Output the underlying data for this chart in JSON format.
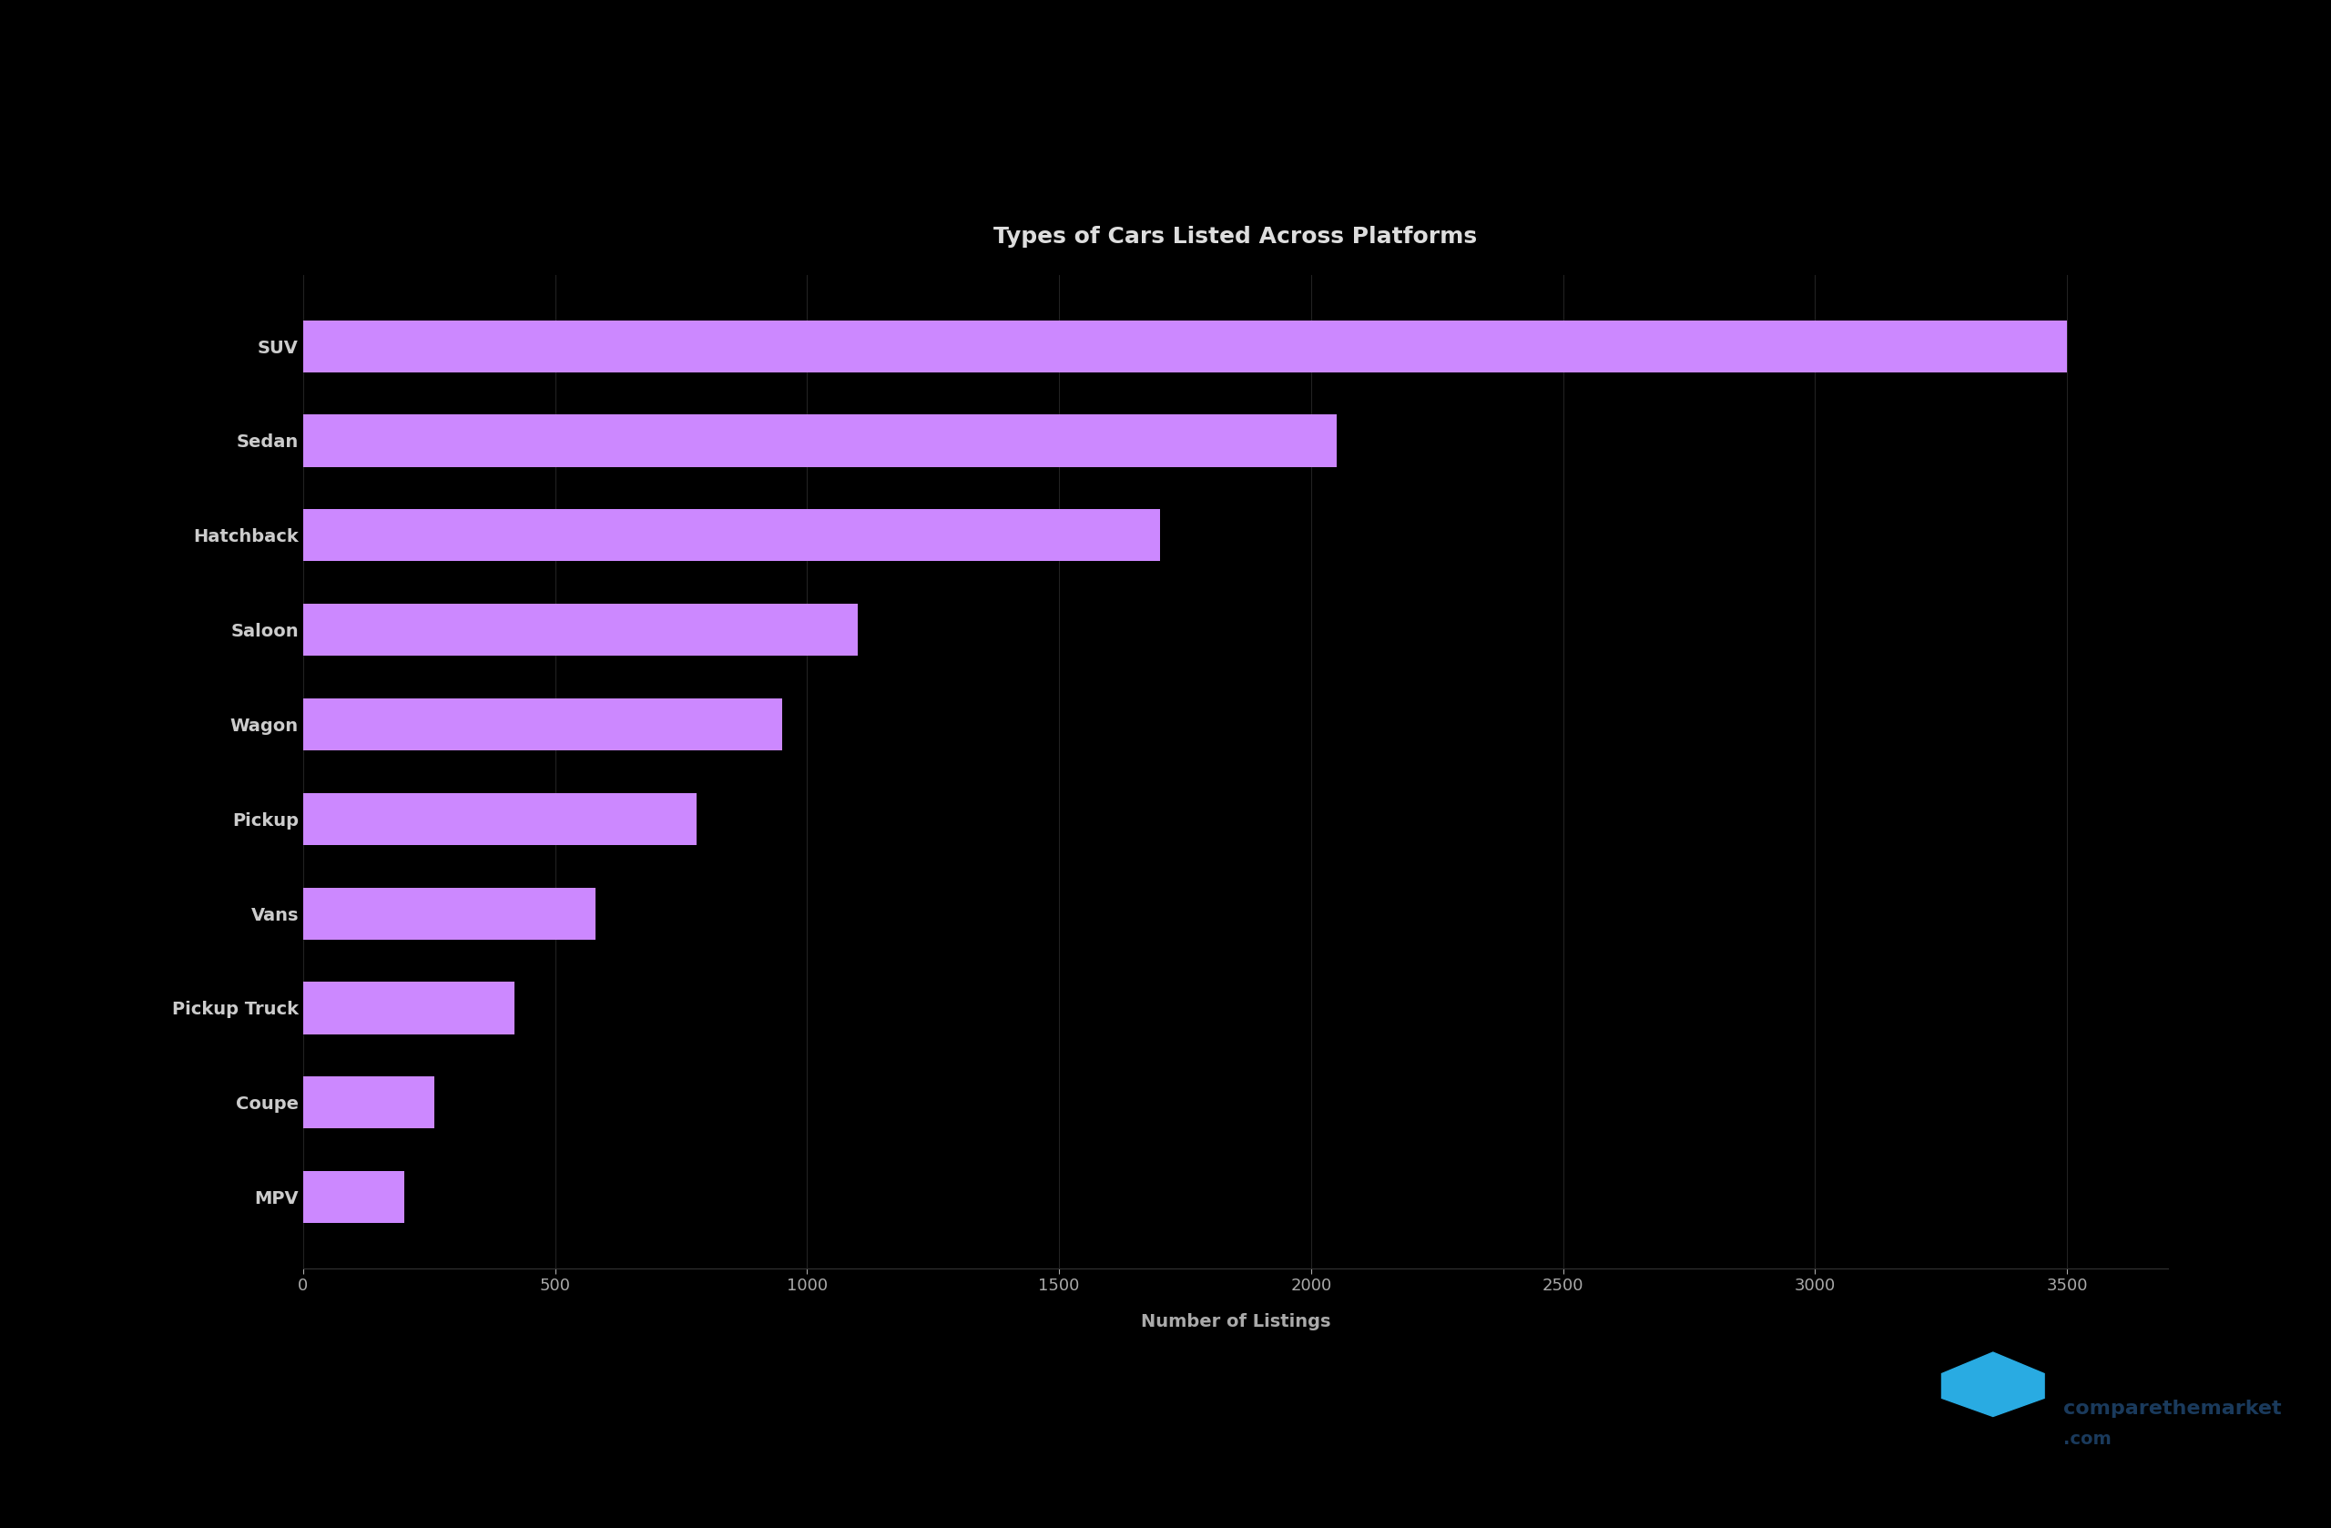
{
  "title": "Types of Cars Listed Across Platforms",
  "xlabel": "Number of Listings",
  "categories": [
    "SUV",
    "Sedan",
    "Hatchback",
    "Saloon",
    "Wagon",
    "Pickup",
    "Vans",
    "Pickup Truck",
    "Coupe",
    "MPV"
  ],
  "values": [
    3500,
    2050,
    1700,
    1100,
    950,
    780,
    580,
    420,
    260,
    200
  ],
  "bar_color": "#CC88FF",
  "fig_background": "#000000",
  "ax_background": "#000000",
  "text_color": "#CCCCCC",
  "title_color": "#DDDDDD",
  "xlabel_color": "#AAAAAA",
  "tick_color": "#AAAAAA",
  "grid_color": "#222222",
  "spine_color": "#333333",
  "xticks": [
    0,
    500,
    1000,
    1500,
    2000,
    2500,
    3000,
    3500
  ],
  "xlim_max": 3700,
  "title_fontsize": 18,
  "label_fontsize": 14,
  "tick_fontsize": 13,
  "bar_height": 0.55,
  "logo_text": "comparethemarket",
  "logo_color": "#29ABE2",
  "logo_text_color": "#1a3a5c",
  "logo_fontsize": 16
}
